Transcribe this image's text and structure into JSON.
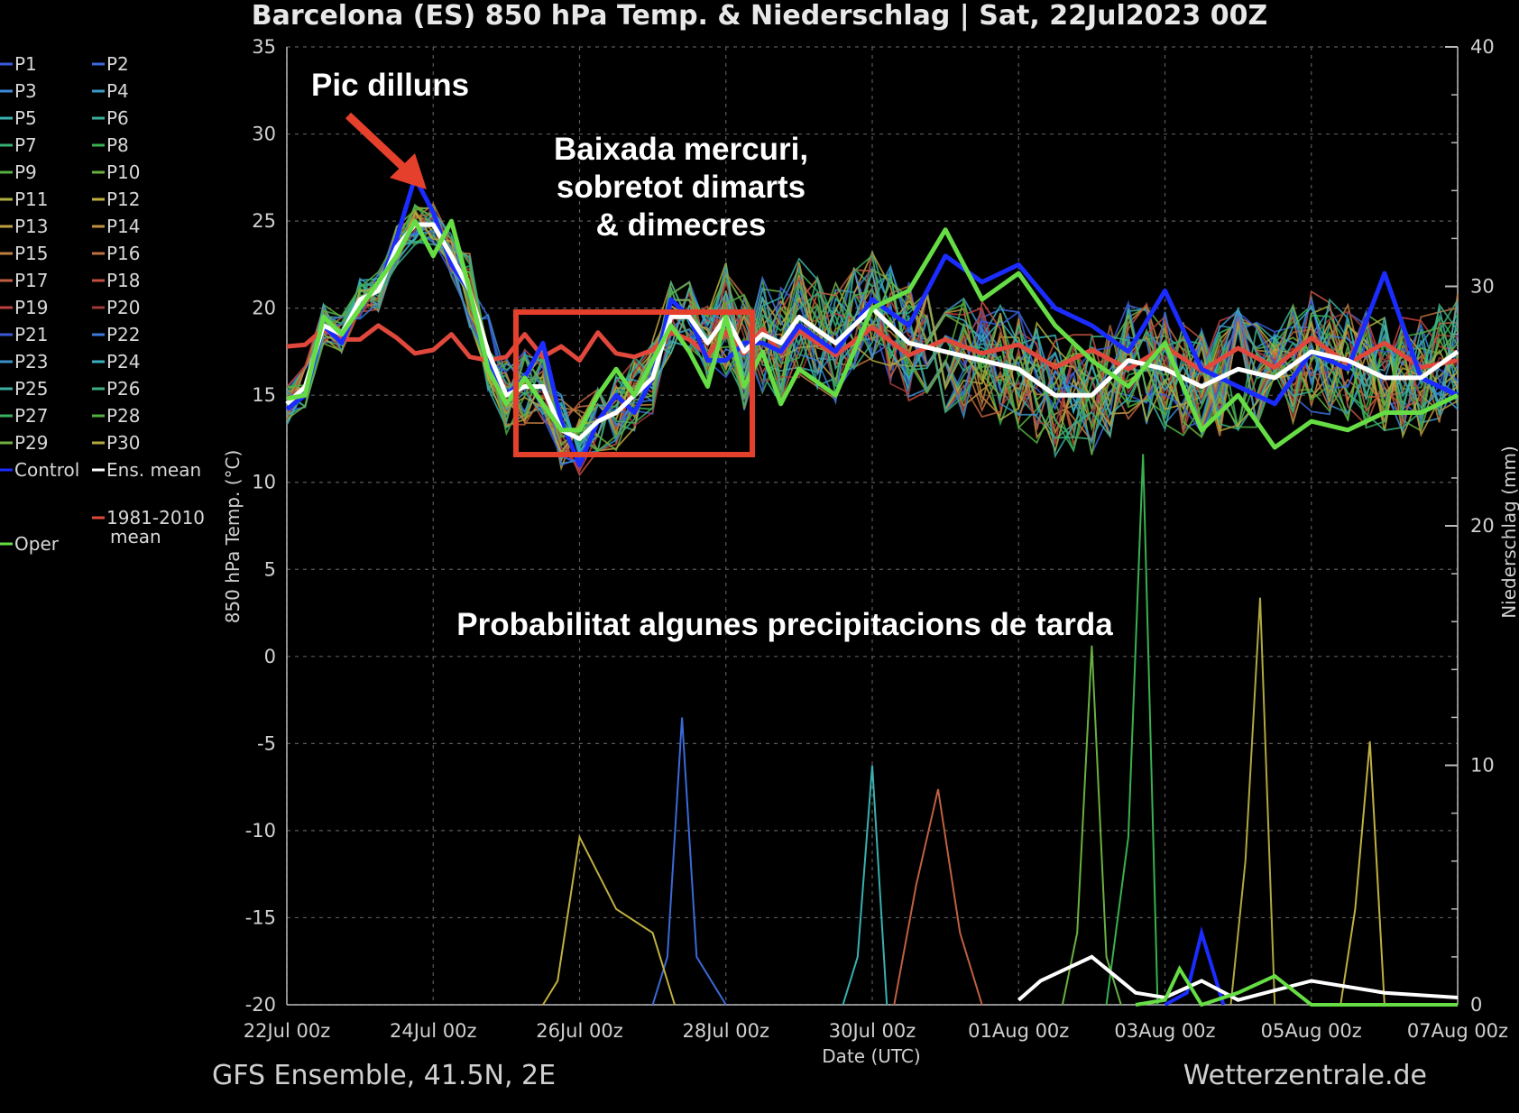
{
  "chart_data": {
    "type": "line",
    "title": "Barcelona  (ES)  850 hPa Temp. & Niederschlag | Sat, 22Jul2023 00Z",
    "xlabel": "Date (UTC)",
    "ylabel": "850 hPa Temp. (°C)",
    "y2label": "Niederschlag (mm)",
    "x_ticks": [
      "22Jul 00z",
      "24Jul 00z",
      "26Jul 00z",
      "28Jul 00z",
      "30Jul 00z",
      "01Aug 00z",
      "03Aug 00z",
      "05Aug 00z",
      "07Aug 00z"
    ],
    "x_range_days": [
      0,
      16
    ],
    "ylim": [
      -20,
      35
    ],
    "y_ticks": [
      "35",
      "30",
      "25",
      "20",
      "15",
      "10",
      "5",
      "0",
      "-5",
      "-10",
      "-15",
      "-20"
    ],
    "y2lim": [
      0,
      40
    ],
    "y2_ticks": [
      "40",
      "30",
      "20",
      "10",
      "0"
    ],
    "grid": true,
    "legend_position": "left outside",
    "legend": [
      {
        "label": "P1",
        "color": "#3a5ad8"
      },
      {
        "label": "P2",
        "color": "#3a6ad8"
      },
      {
        "label": "P3",
        "color": "#3a8ad8"
      },
      {
        "label": "P4",
        "color": "#3a9ac8"
      },
      {
        "label": "P5",
        "color": "#3ab0b0"
      },
      {
        "label": "P6",
        "color": "#3ab09a"
      },
      {
        "label": "P7",
        "color": "#3ab070"
      },
      {
        "label": "P8",
        "color": "#3ab050"
      },
      {
        "label": "P9",
        "color": "#55b040"
      },
      {
        "label": "P10",
        "color": "#6ab040"
      },
      {
        "label": "P11",
        "color": "#b0b040"
      },
      {
        "label": "P12",
        "color": "#c0b040"
      },
      {
        "label": "P13",
        "color": "#c0a040"
      },
      {
        "label": "P14",
        "color": "#c09040"
      },
      {
        "label": "P15",
        "color": "#c08040"
      },
      {
        "label": "P16",
        "color": "#c07040"
      },
      {
        "label": "P17",
        "color": "#c06040"
      },
      {
        "label": "P18",
        "color": "#c05040"
      },
      {
        "label": "P19",
        "color": "#c04040"
      },
      {
        "label": "P20",
        "color": "#a03a3a"
      },
      {
        "label": "P21",
        "color": "#3a5ad8"
      },
      {
        "label": "P22",
        "color": "#3a7ad8"
      },
      {
        "label": "P23",
        "color": "#3a90c8"
      },
      {
        "label": "P24",
        "color": "#3ab0c0"
      },
      {
        "label": "P25",
        "color": "#3ab0a0"
      },
      {
        "label": "P26",
        "color": "#3ab080"
      },
      {
        "label": "P27",
        "color": "#3ab060"
      },
      {
        "label": "P28",
        "color": "#50b040"
      },
      {
        "label": "P29",
        "color": "#70b040"
      },
      {
        "label": "P30",
        "color": "#b0a840"
      },
      {
        "label": "Control",
        "color": "#1a2cff"
      },
      {
        "label": "Ens. mean",
        "color": "#ffffff"
      },
      {
        "label": "Oper",
        "color": "#66dd44"
      },
      {
        "label": "1981-2010 mean",
        "color": "#e0483c"
      }
    ],
    "series": [
      {
        "name": "Control",
        "color": "#1a2cff",
        "x": [
          0,
          0.25,
          0.5,
          0.75,
          1,
          1.25,
          1.5,
          1.75,
          2,
          2.25,
          2.5,
          2.75,
          3,
          3.25,
          3.5,
          3.75,
          4,
          4.25,
          4.5,
          4.75,
          5,
          5.25,
          5.5,
          5.75,
          6,
          6.25,
          6.5,
          6.75,
          7,
          7.5,
          8,
          8.5,
          9,
          9.5,
          10,
          10.5,
          11,
          11.5,
          12,
          12.5,
          13,
          13.5,
          14,
          14.5,
          15,
          15.5,
          16
        ],
        "values": [
          14.2,
          15,
          19,
          18,
          20.5,
          21,
          24,
          27.5,
          25.5,
          22.5,
          21,
          17,
          15,
          16,
          18,
          13.5,
          11,
          13.5,
          15,
          14,
          16,
          20.5,
          19.5,
          17,
          17,
          18,
          18,
          17.5,
          19,
          17.5,
          20.5,
          19,
          23,
          21.5,
          22.5,
          20,
          19,
          17.5,
          21,
          16.5,
          15.5,
          14.5,
          17.5,
          16.5,
          22,
          16,
          15
        ]
      },
      {
        "name": "Ens. mean",
        "color": "#ffffff",
        "x": [
          0,
          0.25,
          0.5,
          0.75,
          1,
          1.25,
          1.5,
          1.75,
          2,
          2.25,
          2.5,
          2.75,
          3,
          3.25,
          3.5,
          3.75,
          4,
          4.25,
          4.5,
          4.75,
          5,
          5.25,
          5.5,
          5.75,
          6,
          6.25,
          6.5,
          6.75,
          7,
          7.5,
          8,
          8.5,
          9,
          9.5,
          10,
          10.5,
          11,
          11.5,
          12,
          12.5,
          13,
          13.5,
          14,
          14.5,
          15,
          15.5,
          16
        ],
        "values": [
          14.5,
          15.5,
          19,
          18.5,
          20.5,
          21,
          23.5,
          24.8,
          24.8,
          23,
          21,
          17.5,
          15,
          15.5,
          15.5,
          13,
          12.5,
          13.5,
          14,
          15,
          16,
          19.5,
          19.5,
          18,
          19.5,
          17.5,
          18.5,
          18,
          19.5,
          18,
          20,
          18,
          17.5,
          17,
          16.5,
          15,
          15,
          17,
          16.5,
          15.5,
          16.5,
          16,
          17.5,
          17,
          16,
          16,
          17.5
        ]
      },
      {
        "name": "Oper",
        "color": "#66dd44",
        "x": [
          0,
          0.25,
          0.5,
          0.75,
          1,
          1.25,
          1.5,
          1.75,
          2,
          2.25,
          2.5,
          2.75,
          3,
          3.25,
          3.5,
          3.75,
          4,
          4.25,
          4.5,
          4.75,
          5,
          5.25,
          5.5,
          5.75,
          6,
          6.25,
          6.5,
          6.75,
          7,
          7.5,
          8,
          8.5,
          9,
          9.5,
          10,
          10.5,
          11,
          11.5,
          12,
          12.5,
          13,
          13.5,
          14,
          14.5,
          15,
          15.5,
          16
        ],
        "values": [
          14.8,
          15,
          19.5,
          18.5,
          20,
          21.5,
          23,
          25,
          23,
          25,
          21,
          16.5,
          14.5,
          16,
          14.5,
          13,
          13,
          15,
          16.5,
          15,
          17,
          19,
          17.5,
          15.5,
          19.5,
          15.5,
          17.5,
          14.5,
          16.5,
          15,
          20,
          21,
          24.5,
          20.5,
          22,
          19,
          17,
          15.5,
          18,
          13,
          15,
          12,
          13.5,
          13,
          14,
          14,
          15
        ]
      },
      {
        "name": "1981-2010 mean",
        "color": "#e0483c",
        "x": [
          0,
          0.25,
          0.5,
          0.75,
          1,
          1.25,
          1.5,
          1.75,
          2,
          2.25,
          2.5,
          2.75,
          3,
          3.25,
          3.5,
          3.75,
          4,
          4.25,
          4.5,
          4.75,
          5,
          5.25,
          5.5,
          5.75,
          6,
          6.25,
          6.5,
          6.75,
          7,
          7.5,
          8,
          8.5,
          9,
          9.5,
          10,
          10.5,
          11,
          11.5,
          12,
          12.5,
          13,
          13.5,
          14,
          14.5,
          15,
          15.5,
          16
        ],
        "values": [
          17.8,
          17.9,
          18.8,
          18.2,
          18.2,
          19,
          18.3,
          17.4,
          17.6,
          18.5,
          17.2,
          17,
          17.2,
          18.5,
          17.2,
          17.8,
          17,
          18.6,
          17.4,
          17.2,
          17.6,
          18.6,
          18.2,
          17.3,
          18.6,
          17.4,
          18.8,
          17.4,
          18.7,
          17.3,
          18.9,
          17.3,
          18.2,
          17.4,
          17.9,
          16.6,
          17.6,
          16.5,
          17.8,
          16.4,
          17.7,
          16.6,
          18.3,
          16.8,
          18,
          16.6,
          17
        ]
      }
    ],
    "precipitation": [
      {
        "name": "P2",
        "color": "#3a6ad8",
        "x": [
          5,
          5.2,
          5.4,
          5.6,
          6
        ],
        "values": [
          0,
          2,
          12,
          2,
          0
        ]
      },
      {
        "name": "P11",
        "color": "#c0b040",
        "x": [
          3.5,
          3.7,
          4,
          4.5,
          5,
          5.3
        ],
        "values": [
          0,
          1,
          7,
          4,
          3,
          0
        ]
      },
      {
        "name": "P5",
        "color": "#3ab0b0",
        "x": [
          7.6,
          7.8,
          8,
          8.2
        ],
        "values": [
          0,
          2,
          10,
          0
        ]
      },
      {
        "name": "P17",
        "color": "#c06040",
        "x": [
          8.3,
          8.6,
          8.9,
          9.2,
          9.5
        ],
        "values": [
          0,
          5,
          9,
          3,
          0
        ]
      },
      {
        "name": "P10",
        "color": "#6ab040",
        "x": [
          10.6,
          10.8,
          11,
          11.2,
          11.4
        ],
        "values": [
          0,
          3,
          15,
          2,
          0
        ]
      },
      {
        "name": "P8",
        "color": "#3ab050",
        "x": [
          11.2,
          11.5,
          11.7,
          11.9
        ],
        "values": [
          0,
          7,
          23,
          0
        ]
      },
      {
        "name": "P30",
        "color": "#b0a840",
        "x": [
          12.9,
          13.1,
          13.3,
          13.5
        ],
        "values": [
          0,
          6,
          17,
          0
        ]
      },
      {
        "name": "P12",
        "color": "#c0b040",
        "x": [
          14.4,
          14.6,
          14.8,
          15
        ],
        "values": [
          0,
          4,
          11,
          0
        ]
      },
      {
        "name": "Control",
        "color": "#1a2cff",
        "x": [
          12,
          12.3,
          12.5,
          12.8
        ],
        "values": [
          0,
          0.5,
          3,
          0
        ]
      },
      {
        "name": "Ens. mean",
        "color": "#ffffff",
        "x": [
          10,
          10.3,
          11,
          11.6,
          12,
          12.5,
          13,
          14,
          15,
          16
        ],
        "values": [
          0.2,
          1,
          2,
          0.5,
          0.3,
          1,
          0.2,
          1,
          0.5,
          0.3
        ]
      },
      {
        "name": "Oper",
        "color": "#66dd44",
        "x": [
          11.6,
          12,
          12.2,
          12.5,
          13,
          13.5,
          14,
          16
        ],
        "values": [
          0,
          0.2,
          1.5,
          0,
          0.5,
          1.2,
          0,
          0
        ]
      }
    ],
    "annotations": [
      "Pic dilluns",
      "Baixada mercuri,",
      "sobretot dimarts",
      "& dimecres",
      "Probabilitat algunes precipitacions de tarda"
    ],
    "footer_left": "GFS Ensemble, 41.5N, 2E",
    "footer_right": "Wetterzentrale.de"
  }
}
